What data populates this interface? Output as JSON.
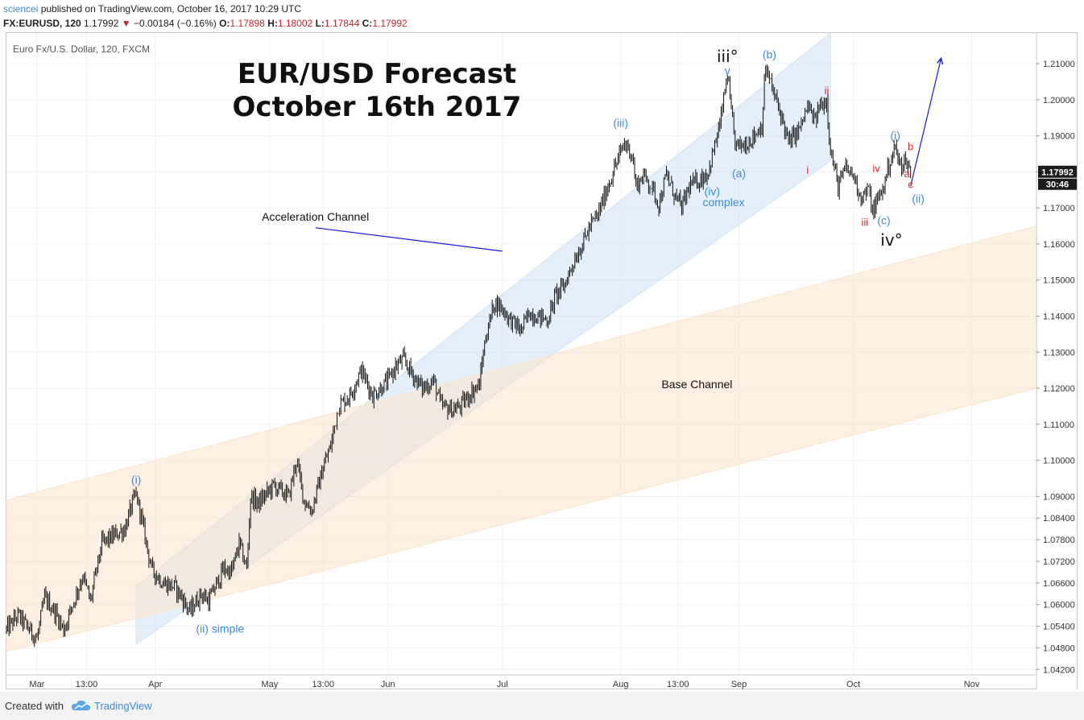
{
  "header": {
    "author": "sciencei",
    "published_text": " published on TradingView.com, October 16, 2017 10:29 UTC",
    "symbol_interval": "FX:EURUSD, 120",
    "last": "1.17992",
    "change": "−0.00184 (−0.16%)",
    "o_label": "O:",
    "o": "1.17898",
    "h_label": "H:",
    "h": "1.18002",
    "l_label": "L:",
    "l": "1.17844",
    "c_label": "C:",
    "c": "1.17992"
  },
  "footer": {
    "created": "Created with",
    "brand": "TradingView"
  },
  "chart_data": {
    "type": "line",
    "style": "candlestick",
    "instrument": "Euro Fx/U.S. Dollar, 120, FXCM",
    "title_lines": [
      "EUR/USD Forecast",
      "October 16th 2017"
    ],
    "ylim": [
      1.0405,
      1.2185
    ],
    "y_ticks": [
      1.21,
      1.2,
      1.19,
      1.18,
      1.17,
      1.16,
      1.15,
      1.14,
      1.13,
      1.12,
      1.11,
      1.1,
      1.09,
      1.084,
      1.078,
      1.072,
      1.066,
      1.06,
      1.054,
      1.048,
      1.042
    ],
    "y_tick_labels": [
      "1.21000",
      "1.20000",
      "1.19000",
      "1.18000",
      "1.17000",
      "1.16000",
      "1.15000",
      "1.14000",
      "1.13000",
      "1.12000",
      "1.11000",
      "1.10000",
      "1.09000",
      "1.08400",
      "1.07800",
      "1.07200",
      "1.06600",
      "1.06000",
      "1.05400",
      "1.04800",
      "1.04200"
    ],
    "xlim": [
      "2017-02-21",
      "2017-11-18"
    ],
    "x_ticks": [
      {
        "label": "Mar",
        "date": "2017-03-01"
      },
      {
        "label": "13:00",
        "date": "2017-03-14"
      },
      {
        "label": "Apr",
        "date": "2017-04-01"
      },
      {
        "label": "May",
        "date": "2017-05-01"
      },
      {
        "label": "13:00",
        "date": "2017-05-15"
      },
      {
        "label": "Jun",
        "date": "2017-06-01"
      },
      {
        "label": "Jul",
        "date": "2017-07-01"
      },
      {
        "label": "Aug",
        "date": "2017-08-01"
      },
      {
        "label": "13:00",
        "date": "2017-08-16"
      },
      {
        "label": "Sep",
        "date": "2017-09-01"
      },
      {
        "label": "Oct",
        "date": "2017-10-01"
      },
      {
        "label": "Nov",
        "date": "2017-11-01"
      }
    ],
    "price_path": [
      [
        "2017-02-21",
        1.053
      ],
      [
        "2017-02-24",
        1.057
      ],
      [
        "2017-03-01",
        1.0505
      ],
      [
        "2017-03-03",
        1.062
      ],
      [
        "2017-03-06",
        1.0575
      ],
      [
        "2017-03-08",
        1.053
      ],
      [
        "2017-03-13",
        1.068
      ],
      [
        "2017-03-15",
        1.061
      ],
      [
        "2017-03-18",
        1.077
      ],
      [
        "2017-03-21",
        1.079
      ],
      [
        "2017-03-24",
        1.081
      ],
      [
        "2017-03-26",
        1.088
      ],
      [
        "2017-03-27",
        1.0905
      ],
      [
        "2017-03-28",
        1.086
      ],
      [
        "2017-03-31",
        1.07
      ],
      [
        "2017-04-03",
        1.066
      ],
      [
        "2017-04-06",
        1.065
      ],
      [
        "2017-04-08",
        1.062
      ],
      [
        "2017-04-10",
        1.058
      ],
      [
        "2017-04-13",
        1.063
      ],
      [
        "2017-04-15",
        1.061
      ],
      [
        "2017-04-19",
        1.07
      ],
      [
        "2017-04-21",
        1.069
      ],
      [
        "2017-04-23",
        1.077
      ],
      [
        "2017-04-25",
        1.07
      ],
      [
        "2017-04-26",
        1.09
      ],
      [
        "2017-04-28",
        1.088
      ],
      [
        "2017-05-02",
        1.093
      ],
      [
        "2017-05-06",
        1.09
      ],
      [
        "2017-05-08",
        1.1
      ],
      [
        "2017-05-10",
        1.089
      ],
      [
        "2017-05-12",
        1.086
      ],
      [
        "2017-05-15",
        1.098
      ],
      [
        "2017-05-17",
        1.104
      ],
      [
        "2017-05-19",
        1.115
      ],
      [
        "2017-05-22",
        1.118
      ],
      [
        "2017-05-25",
        1.125
      ],
      [
        "2017-05-28",
        1.118
      ],
      [
        "2017-06-01",
        1.122
      ],
      [
        "2017-06-03",
        1.126
      ],
      [
        "2017-06-05",
        1.128
      ],
      [
        "2017-06-08",
        1.123
      ],
      [
        "2017-06-10",
        1.12
      ],
      [
        "2017-06-13",
        1.122
      ],
      [
        "2017-06-15",
        1.115
      ],
      [
        "2017-06-18",
        1.114
      ],
      [
        "2017-06-20",
        1.115
      ],
      [
        "2017-06-23",
        1.119
      ],
      [
        "2017-06-25",
        1.121
      ],
      [
        "2017-06-26",
        1.13
      ],
      [
        "2017-06-27",
        1.136
      ],
      [
        "2017-06-29",
        1.144
      ],
      [
        "2017-07-01",
        1.142
      ],
      [
        "2017-07-03",
        1.139
      ],
      [
        "2017-07-06",
        1.136
      ],
      [
        "2017-07-08",
        1.141
      ],
      [
        "2017-07-10",
        1.14
      ],
      [
        "2017-07-13",
        1.139
      ],
      [
        "2017-07-15",
        1.146
      ],
      [
        "2017-07-17",
        1.148
      ],
      [
        "2017-07-20",
        1.156
      ],
      [
        "2017-07-22",
        1.16
      ],
      [
        "2017-07-24",
        1.165
      ],
      [
        "2017-07-26",
        1.168
      ],
      [
        "2017-07-28",
        1.174
      ],
      [
        "2017-07-30",
        1.18
      ],
      [
        "2017-08-02",
        1.188
      ],
      [
        "2017-08-04",
        1.185
      ],
      [
        "2017-08-05",
        1.176
      ],
      [
        "2017-08-07",
        1.179
      ],
      [
        "2017-08-09",
        1.176
      ],
      [
        "2017-08-11",
        1.171
      ],
      [
        "2017-08-13",
        1.179
      ],
      [
        "2017-08-15",
        1.174
      ],
      [
        "2017-08-17",
        1.17
      ],
      [
        "2017-08-19",
        1.176
      ],
      [
        "2017-08-22",
        1.178
      ],
      [
        "2017-08-24",
        1.18
      ],
      [
        "2017-08-27",
        1.193
      ],
      [
        "2017-08-29",
        1.207
      ],
      [
        "2017-08-30",
        1.196
      ],
      [
        "2017-08-31",
        1.188
      ],
      [
        "2017-09-01",
        1.187
      ],
      [
        "2017-09-03",
        1.188
      ],
      [
        "2017-09-05",
        1.19
      ],
      [
        "2017-09-07",
        1.193
      ],
      [
        "2017-09-08",
        1.209
      ],
      [
        "2017-09-10",
        1.202
      ],
      [
        "2017-09-12",
        1.196
      ],
      [
        "2017-09-14",
        1.188
      ],
      [
        "2017-09-17",
        1.192
      ],
      [
        "2017-09-19",
        1.198
      ],
      [
        "2017-09-21",
        1.194
      ],
      [
        "2017-09-22",
        1.198
      ],
      [
        "2017-09-24",
        1.2
      ],
      [
        "2017-09-25",
        1.186
      ],
      [
        "2017-09-27",
        1.176
      ],
      [
        "2017-09-29",
        1.181
      ],
      [
        "2017-10-01",
        1.179
      ],
      [
        "2017-10-03",
        1.173
      ],
      [
        "2017-10-05",
        1.175
      ],
      [
        "2017-10-06",
        1.169
      ],
      [
        "2017-10-09",
        1.176
      ],
      [
        "2017-10-10",
        1.181
      ],
      [
        "2017-10-12",
        1.187
      ],
      [
        "2017-10-13",
        1.182
      ],
      [
        "2017-10-15",
        1.183
      ],
      [
        "2017-10-16",
        1.1799
      ]
    ],
    "current_price": "1.17992",
    "countdown": "30:46",
    "annotations": [
      {
        "text": "(i)",
        "date": "2017-03-27",
        "price": 1.0935,
        "color": "#3d8ad8"
      },
      {
        "text": "(ii) simple",
        "date": "2017-04-18",
        "price": 1.0522,
        "color": "#3d8ad8"
      },
      {
        "text": "(iii)",
        "date": "2017-08-01",
        "price": 1.1925,
        "color": "#3d8ad8"
      },
      {
        "text": "(iv)",
        "date": "2017-08-25",
        "price": 1.1735,
        "color": "#3d8ad8"
      },
      {
        "text": "complex",
        "date": "2017-08-28",
        "price": 1.1705,
        "color": "#3d8ad8"
      },
      {
        "text": "(a)",
        "date": "2017-09-01",
        "price": 1.1785,
        "color": "#3d8ad8"
      },
      {
        "text": "(b)",
        "date": "2017-09-09",
        "price": 1.2115,
        "color": "#3d8ad8"
      },
      {
        "text": "(c)",
        "date": "2017-10-09",
        "price": 1.1655,
        "color": "#3d8ad8"
      },
      {
        "text": "(i)",
        "date": "2017-10-12",
        "price": 1.189,
        "color": "#3d8ad8"
      },
      {
        "text": "(ii)",
        "date": "2017-10-18",
        "price": 1.1715,
        "color": "#3d8ad8"
      },
      {
        "text": "iii°",
        "date": "2017-08-29",
        "price": 1.2105,
        "color": "#111111",
        "size": "large"
      },
      {
        "text": "iv°",
        "date": "2017-10-11",
        "price": 1.1595,
        "color": "#111111",
        "size": "large"
      },
      {
        "text": "v",
        "date": "2017-08-29",
        "price": 1.207,
        "color": "#3d8ad8"
      },
      {
        "text": "ii",
        "date": "2017-09-24",
        "price": 1.2015,
        "color": "#d62728"
      },
      {
        "text": "i",
        "date": "2017-09-19",
        "price": 1.1795,
        "color": "#d62728"
      },
      {
        "text": "iii",
        "date": "2017-10-04",
        "price": 1.165,
        "color": "#d62728"
      },
      {
        "text": "iv",
        "date": "2017-10-07",
        "price": 1.18,
        "color": "#d62728"
      },
      {
        "text": "b",
        "date": "2017-10-16",
        "price": 1.186,
        "color": "#d62728"
      },
      {
        "text": "a",
        "date": "2017-10-15",
        "price": 1.1785,
        "color": "#d62728"
      },
      {
        "text": "c",
        "date": "2017-10-16",
        "price": 1.1755,
        "color": "#d62728"
      },
      {
        "text": "Acceleration Channel",
        "date": "2017-05-13",
        "price": 1.1665,
        "color": "#111111"
      },
      {
        "text": "Base Channel",
        "date": "2017-08-21",
        "price": 1.12,
        "color": "#111111"
      }
    ],
    "channels": [
      {
        "name": "Acceleration Channel",
        "color": "#cfe2f5",
        "corners": [
          [
            "2017-03-27",
            1.049
          ],
          [
            "2017-03-27",
            1.065
          ],
          [
            "2017-09-25",
            1.2185
          ],
          [
            "2017-09-25",
            1.183
          ]
        ]
      },
      {
        "name": "Base Channel",
        "color": "#fbe3cb",
        "corners": [
          [
            "2017-02-21",
            1.089
          ],
          [
            "2017-11-18",
            1.165
          ],
          [
            "2017-11-18",
            1.12
          ],
          [
            "2017-02-21",
            1.047
          ]
        ]
      }
    ],
    "arrows": [
      {
        "from": [
          "2017-05-13",
          1.1645
        ],
        "to": [
          "2017-07-01",
          1.158
        ],
        "color": "#1a1adb",
        "head": false
      },
      {
        "from": [
          "2017-10-16",
          1.176
        ],
        "to": [
          "2017-10-24",
          1.2115
        ],
        "color": "#1a1adb",
        "head": true
      }
    ]
  }
}
